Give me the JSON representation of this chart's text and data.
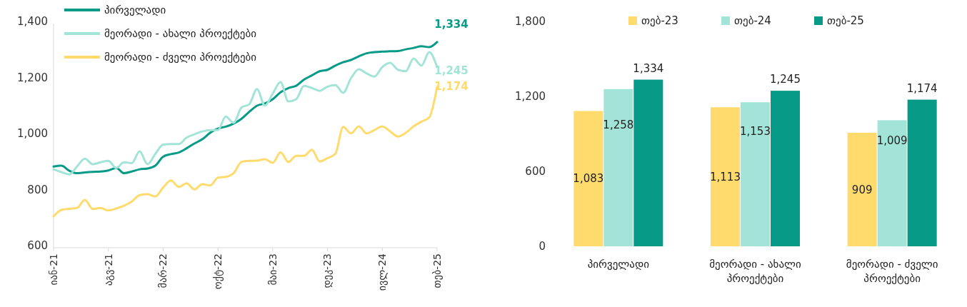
{
  "chart_data": [
    {
      "type": "line",
      "categories": [
        "იან-21",
        null,
        null,
        null,
        null,
        null,
        null,
        "აგვ-21",
        null,
        null,
        null,
        null,
        null,
        null,
        "მარ-22",
        null,
        null,
        null,
        null,
        null,
        null,
        "ოქტ-22",
        null,
        null,
        null,
        null,
        null,
        null,
        "მაი-23",
        null,
        null,
        null,
        null,
        null,
        null,
        "დეკ-23",
        null,
        null,
        null,
        null,
        null,
        null,
        "ივლ-24",
        null,
        null,
        null,
        null,
        null,
        null,
        "თებ-25"
      ],
      "series": [
        {
          "name": "პირველადი",
          "color": "#079a87",
          "values": [
            890,
            893,
            875,
            866,
            869,
            871,
            872,
            876,
            885,
            866,
            872,
            880,
            883,
            893,
            925,
            934,
            940,
            955,
            972,
            987,
            1010,
            1025,
            1032,
            1043,
            1060,
            1085,
            1107,
            1115,
            1130,
            1155,
            1170,
            1178,
            1200,
            1215,
            1230,
            1235,
            1250,
            1262,
            1270,
            1283,
            1294,
            1298,
            1300,
            1301,
            1302,
            1308,
            1313,
            1319,
            1316,
            1334
          ],
          "value_labels": [
            null,
            null,
            null,
            null,
            null,
            null,
            null,
            null,
            null,
            null,
            null,
            null,
            null,
            null,
            null,
            null,
            null,
            null,
            null,
            null,
            null,
            null,
            null,
            null,
            null,
            null,
            null,
            null,
            null,
            null,
            null,
            null,
            null,
            null,
            null,
            null,
            null,
            null,
            null,
            null,
            null,
            null,
            null,
            null,
            null,
            null,
            null,
            null,
            null,
            "1,334"
          ]
        },
        {
          "name": "მეორადი - ახალი პროექტები",
          "color": "#a3e4d8",
          "values": [
            880,
            870,
            862,
            890,
            918,
            898,
            905,
            910,
            885,
            905,
            902,
            944,
            898,
            935,
            968,
            970,
            970,
            993,
            1005,
            1015,
            1020,
            1020,
            1068,
            1046,
            1100,
            1112,
            1166,
            1107,
            1150,
            1191,
            1122,
            1130,
            1178,
            1170,
            1160,
            1175,
            1180,
            1153,
            1205,
            1237,
            1222,
            1211,
            1245,
            1260,
            1235,
            1230,
            1275,
            1250,
            1298,
            1245
          ],
          "value_labels": [
            null,
            null,
            null,
            null,
            null,
            null,
            null,
            null,
            null,
            null,
            null,
            null,
            null,
            null,
            null,
            null,
            null,
            null,
            null,
            null,
            null,
            null,
            null,
            null,
            null,
            null,
            null,
            null,
            null,
            null,
            null,
            null,
            null,
            null,
            null,
            null,
            null,
            null,
            null,
            null,
            null,
            null,
            null,
            null,
            null,
            null,
            null,
            null,
            null,
            "1,245"
          ]
        },
        {
          "name": "მეორადი - ძველი პროექტები",
          "color": "#ffdb6e",
          "values": [
            712,
            735,
            739,
            742,
            771,
            738,
            742,
            733,
            740,
            750,
            765,
            788,
            791,
            783,
            815,
            840,
            817,
            830,
            808,
            827,
            822,
            850,
            853,
            866,
            906,
            910,
            911,
            916,
            903,
            941,
            906,
            928,
            928,
            950,
            908,
            920,
            935,
            1031,
            1008,
            1033,
            1008,
            1020,
            1033,
            1015,
            997,
            1010,
            1033,
            1050,
            1065,
            1174
          ],
          "value_labels": [
            null,
            null,
            null,
            null,
            null,
            null,
            null,
            null,
            null,
            null,
            null,
            null,
            null,
            null,
            null,
            null,
            null,
            null,
            null,
            null,
            null,
            null,
            null,
            null,
            null,
            null,
            null,
            null,
            null,
            null,
            null,
            null,
            null,
            null,
            null,
            null,
            null,
            null,
            null,
            null,
            null,
            null,
            null,
            null,
            null,
            null,
            null,
            null,
            null,
            "1,174"
          ]
        }
      ],
      "ylim": [
        600,
        1400
      ],
      "yticks": [
        {
          "value": 600,
          "label": "600"
        },
        {
          "value": 800,
          "label": "800"
        },
        {
          "value": 1000,
          "label": "1,000"
        },
        {
          "value": 1200,
          "label": "1,200"
        },
        {
          "value": 1400,
          "label": "1,400"
        }
      ],
      "legend": "top left",
      "grid": false
    },
    {
      "type": "bar",
      "categories": [
        "პირველადი",
        "მეორადი - ახალი პროექტები",
        "მეორადი - ძველი პროექტები"
      ],
      "series": [
        {
          "name": "თებ-23",
          "color": "#ffdb6e",
          "values": [
            1083,
            1113,
            909
          ],
          "value_labels": [
            "1,083",
            "1,113",
            "909"
          ]
        },
        {
          "name": "თებ-24",
          "color": "#a3e4d8",
          "values": [
            1258,
            1153,
            1009
          ],
          "value_labels": [
            "1,258",
            "1,153",
            "1,009"
          ]
        },
        {
          "name": "თებ-25",
          "color": "#079a87",
          "values": [
            1334,
            1245,
            1174
          ],
          "value_labels": [
            "1,334",
            "1,245",
            "1,174"
          ]
        }
      ],
      "ylim": [
        0,
        1800
      ],
      "yticks": [
        {
          "value": 0,
          "label": "0"
        },
        {
          "value": 600,
          "label": "600"
        },
        {
          "value": 1200,
          "label": "1,200"
        },
        {
          "value": 1800,
          "label": "1,800"
        }
      ],
      "legend": "top",
      "grid": false
    }
  ]
}
